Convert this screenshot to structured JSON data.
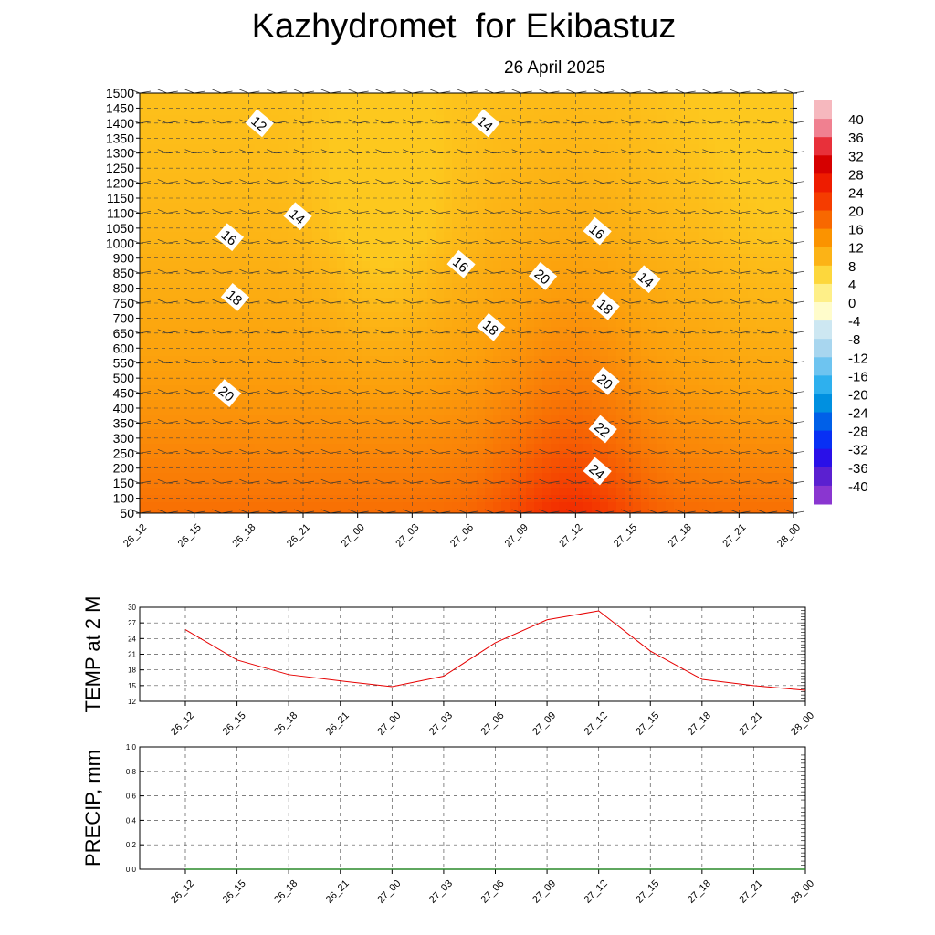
{
  "header": {
    "title": "Kazhydromet  for Ekibastuz",
    "date": "26 April 2025"
  },
  "chart_data": [
    {
      "type": "heatmap",
      "name": "temperature cross-section",
      "x_ticks": [
        "26_12",
        "26_15",
        "26_18",
        "26_21",
        "27_00",
        "27_03",
        "27_06",
        "27_09",
        "27_12",
        "27_15",
        "27_18",
        "27_21",
        "28_00"
      ],
      "y_levels": [
        50,
        100,
        150,
        200,
        250,
        300,
        350,
        400,
        450,
        500,
        550,
        600,
        650,
        700,
        750,
        800,
        850,
        900,
        1000,
        1050,
        1100,
        1150,
        1200,
        1250,
        1300,
        1350,
        1400,
        1450,
        1500
      ],
      "colorbar": {
        "labels": [
          40,
          36,
          32,
          28,
          24,
          20,
          16,
          12,
          8,
          4,
          0,
          -4,
          -8,
          -12,
          -16,
          -20,
          -24,
          -28,
          -32,
          -36,
          -40
        ],
        "colors": [
          "#f6b8be",
          "#f08090",
          "#e8303a",
          "#d60000",
          "#ee1c00",
          "#f53c00",
          "#f86800",
          "#fb9300",
          "#fcb316",
          "#fdd73c",
          "#feef88",
          "#fffccb",
          "#cde7f2",
          "#a8d6ef",
          "#6ec4f0",
          "#2eb0ee",
          "#0090e0",
          "#0060e8",
          "#0830f4",
          "#2a10e8",
          "#5b20d0",
          "#8a36d0"
        ]
      },
      "contour_labels": [
        {
          "text": "12",
          "t": 2.2,
          "h": 1400
        },
        {
          "text": "14",
          "t": 2.9,
          "h": 1090
        },
        {
          "text": "16",
          "t": 1.65,
          "h": 1020
        },
        {
          "text": "18",
          "t": 1.75,
          "h": 770
        },
        {
          "text": "20",
          "t": 1.6,
          "h": 450
        },
        {
          "text": "14",
          "t": 6.35,
          "h": 1400
        },
        {
          "text": "16",
          "t": 5.9,
          "h": 880
        },
        {
          "text": "18",
          "t": 6.45,
          "h": 670
        },
        {
          "text": "20",
          "t": 7.4,
          "h": 840
        },
        {
          "text": "16",
          "t": 8.4,
          "h": 1040
        },
        {
          "text": "14",
          "t": 9.3,
          "h": 830
        },
        {
          "text": "18",
          "t": 8.55,
          "h": 740
        },
        {
          "text": "20",
          "t": 8.55,
          "h": 490
        },
        {
          "text": "22",
          "t": 8.5,
          "h": 330
        },
        {
          "text": "24",
          "t": 8.4,
          "h": 190
        }
      ]
    },
    {
      "type": "line",
      "ylabel": "TEMP at 2 M",
      "x": [
        "26_12",
        "26_15",
        "26_18",
        "26_21",
        "27_00",
        "27_03",
        "27_06",
        "27_09",
        "27_12",
        "27_15",
        "27_18",
        "27_21",
        "28_00"
      ],
      "y": [
        25.7,
        19.9,
        17.1,
        15.9,
        14.8,
        16.8,
        23.2,
        27.6,
        29.3,
        21.6,
        16.2,
        15.0,
        14.1
      ],
      "yticks": [
        12,
        15,
        18,
        21,
        24,
        27,
        30
      ],
      "ylim": [
        12,
        30
      ],
      "line_color": "#e60000"
    },
    {
      "type": "line",
      "ylabel": "PRECIP, mm",
      "x": [
        "26_12",
        "26_15",
        "26_18",
        "26_21",
        "27_00",
        "27_03",
        "27_06",
        "27_09",
        "27_12",
        "27_15",
        "27_18",
        "27_21",
        "28_00"
      ],
      "y": [
        0,
        0,
        0,
        0,
        0,
        0,
        0,
        0,
        0,
        0,
        0,
        0,
        0
      ],
      "yticks": [
        "0.0",
        "0.2",
        "0.4",
        "0.6",
        "0.8",
        "1.0"
      ],
      "ylim": [
        0,
        1
      ],
      "line_color": "#2a8a2a"
    }
  ]
}
